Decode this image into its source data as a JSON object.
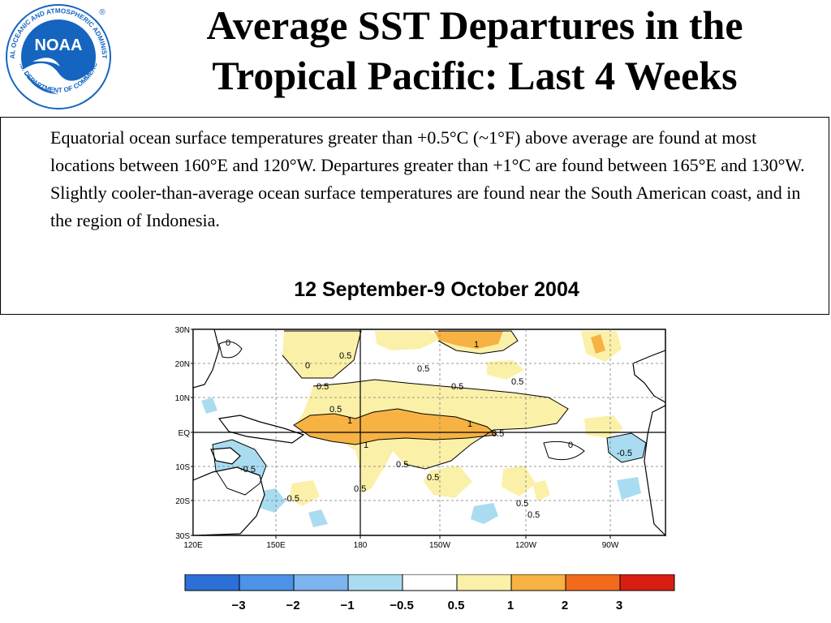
{
  "header": {
    "title_line1": "Average SST Departures in the",
    "title_line2": "Tropical Pacific: Last 4 Weeks",
    "logo": {
      "center_text": "NOAA",
      "ring_text_top": "NATIONAL OCEANIC AND ATMOSPHERIC ADMINISTRATION",
      "ring_text_bottom": "U.S. DEPARTMENT OF COMMERCE",
      "mark": "®",
      "colors": {
        "outer": "#ffffff",
        "inner": "#1565c0",
        "wave": "#ffffff"
      }
    }
  },
  "summary": {
    "text": "Equatorial ocean surface temperatures greater than +0.5°C (~1°F) above average are found at most locations between 160°E and 120°W. Departures greater than +1°C are found between 165°E and 130°W. Slightly cooler-than-average ocean surface temperatures are found near the South American coast, and in the region of Indonesia.",
    "period": "12 September-9 October 2004"
  },
  "map": {
    "y_ticks": [
      "30N",
      "20N",
      "10N",
      "EQ",
      "10S",
      "20S",
      "30S"
    ],
    "x_ticks": [
      "120E",
      "150E",
      "180",
      "150W",
      "120W",
      "90W"
    ],
    "contour_labels": [
      "0",
      "0.5",
      "1",
      "-0.5"
    ],
    "colors": {
      "land": "#ffffff",
      "warm1": "#fbf0a8",
      "warm2": "#f6b243",
      "cool1": "#a9dcf0",
      "contour": "#000000",
      "grid": "#7a7a7a"
    }
  },
  "legend": {
    "labels": [
      "−3",
      "−2",
      "−1",
      "−0.5",
      "0.5",
      "1",
      "2",
      "3"
    ],
    "colors": [
      "#2c6fd6",
      "#4b92e8",
      "#7cb4ee",
      "#a9dcf0",
      "#ffffff",
      "#fbf0a8",
      "#f6b243",
      "#f26b1d",
      "#d91e11"
    ]
  }
}
